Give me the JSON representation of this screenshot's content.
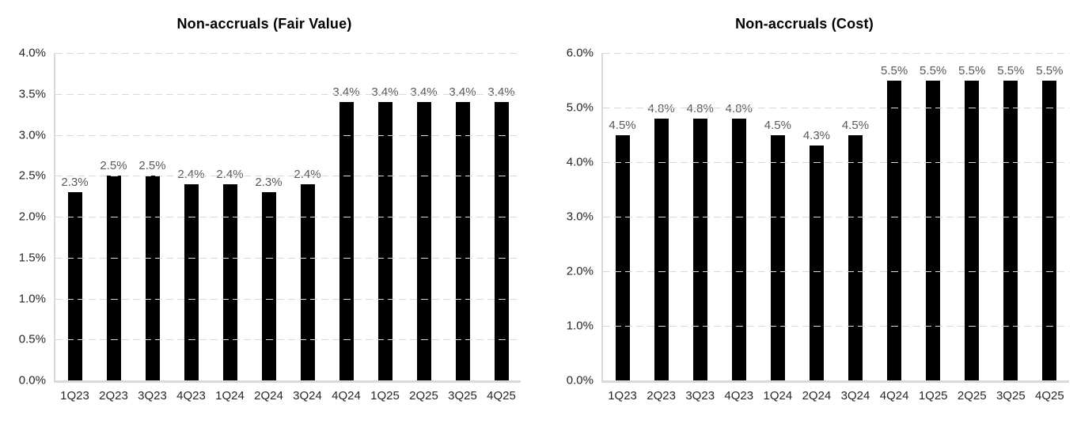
{
  "page": {
    "background": "#ffffff"
  },
  "colors": {
    "bar": "#000000",
    "gridline": "#d9d9d9",
    "axis_line": "#d9d9d9",
    "tick_label": "#262626",
    "data_label": "#595959",
    "title": "#000000"
  },
  "chart_data": [
    {
      "type": "bar",
      "title": "Non-accruals (Fair Value)",
      "categories": [
        "1Q23",
        "2Q23",
        "3Q23",
        "4Q23",
        "1Q24",
        "2Q24",
        "3Q24",
        "4Q24",
        "1Q25",
        "2Q25",
        "3Q25",
        "4Q25"
      ],
      "values": [
        2.3,
        2.5,
        2.5,
        2.4,
        2.4,
        2.3,
        2.4,
        3.4,
        3.4,
        3.4,
        3.4,
        3.4
      ],
      "data_labels": [
        "2.3%",
        "2.5%",
        "2.5%",
        "2.4%",
        "2.4%",
        "2.3%",
        "2.4%",
        "3.4%",
        "3.4%",
        "3.4%",
        "3.4%",
        "3.4%"
      ],
      "xlabel": "",
      "ylabel": "",
      "ylim": [
        0.0,
        4.0
      ],
      "y_ticks": [
        {
          "label": "0.0%",
          "value": 0.0
        },
        {
          "label": "0.5%",
          "value": 0.5
        },
        {
          "label": "1.0%",
          "value": 1.0
        },
        {
          "label": "1.5%",
          "value": 1.5
        },
        {
          "label": "2.0%",
          "value": 2.0
        },
        {
          "label": "2.5%",
          "value": 2.5
        },
        {
          "label": "3.0%",
          "value": 3.0
        },
        {
          "label": "3.5%",
          "value": 3.5
        },
        {
          "label": "4.0%",
          "value": 4.0
        }
      ],
      "grid": "horizontal-dashed",
      "legend": "none"
    },
    {
      "type": "bar",
      "title": "Non-accruals (Cost)",
      "categories": [
        "1Q23",
        "2Q23",
        "3Q23",
        "4Q23",
        "1Q24",
        "2Q24",
        "3Q24",
        "4Q24",
        "1Q25",
        "2Q25",
        "3Q25",
        "4Q25"
      ],
      "values": [
        4.5,
        4.8,
        4.8,
        4.8,
        4.5,
        4.3,
        4.5,
        5.5,
        5.5,
        5.5,
        5.5,
        5.5
      ],
      "data_labels": [
        "4.5%",
        "4.8%",
        "4.8%",
        "4.8%",
        "4.5%",
        "4.3%",
        "4.5%",
        "5.5%",
        "5.5%",
        "5.5%",
        "5.5%",
        "5.5%"
      ],
      "xlabel": "",
      "ylabel": "",
      "ylim": [
        0.0,
        6.0
      ],
      "y_ticks": [
        {
          "label": "0.0%",
          "value": 0.0
        },
        {
          "label": "1.0%",
          "value": 1.0
        },
        {
          "label": "2.0%",
          "value": 2.0
        },
        {
          "label": "3.0%",
          "value": 3.0
        },
        {
          "label": "4.0%",
          "value": 4.0
        },
        {
          "label": "5.0%",
          "value": 5.0
        },
        {
          "label": "6.0%",
          "value": 6.0
        }
      ],
      "grid": "horizontal-dashed",
      "legend": "none"
    }
  ]
}
